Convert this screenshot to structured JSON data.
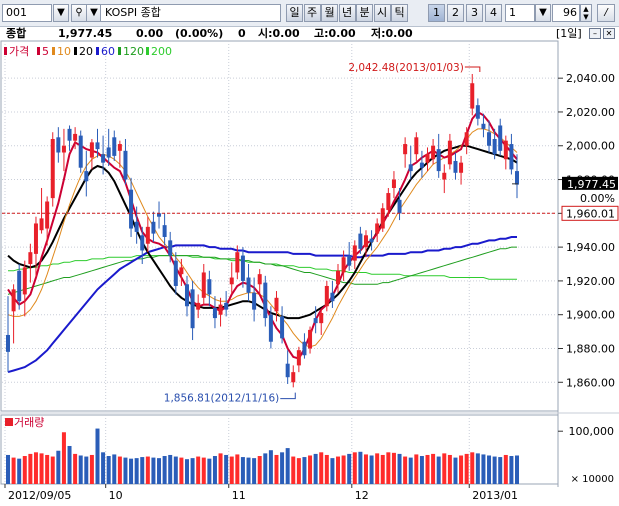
{
  "toolbar": {
    "code": "001",
    "name": "KOSPI 종합",
    "periods": [
      "일",
      "주",
      "월",
      "년",
      "분",
      "시",
      "틱"
    ],
    "numbers": [
      "1",
      "2",
      "3",
      "4"
    ],
    "interval": "1",
    "count": "96"
  },
  "info": {
    "label": "종합",
    "price": "1,977.45",
    "change": "0.00",
    "change_pct": "(0.00%)",
    "volume": "0",
    "open": "시:0.00",
    "high": "고:0.00",
    "low": "저:0.00",
    "period_badge": "[1일]"
  },
  "legend": {
    "price_label": "가격",
    "items": [
      {
        "label": "5",
        "color": "#cc0033"
      },
      {
        "label": "10",
        "color": "#e08a1e"
      },
      {
        "label": "20",
        "color": "#000000"
      },
      {
        "label": "60",
        "color": "#1a1acc"
      },
      {
        "label": "120",
        "color": "#1e9e1e"
      },
      {
        "label": "200",
        "color": "#2ecc2e"
      }
    ]
  },
  "volume_panel": {
    "label": "거래량",
    "y_ticks": [
      "100,000",
      "× 10000"
    ]
  },
  "chart_data": {
    "type": "candlestick",
    "y_ticks": [
      1860,
      1880,
      1900,
      1920,
      1940,
      1960,
      1980,
      2000,
      2020,
      2040
    ],
    "y_tick_labels": [
      "1,860.00",
      "1,880.00",
      "1,900.00",
      "1,920.00",
      "1,940.00",
      "1,960.00",
      "1,980.00",
      "2,000.00",
      "2,020.00",
      "2,040.00"
    ],
    "ylim": [
      1843,
      2062
    ],
    "x_tick_labels": [
      {
        "label": "2012/09/05",
        "index": 0
      },
      {
        "label": "10",
        "index": 18
      },
      {
        "label": "11",
        "index": 40
      },
      {
        "label": "12",
        "index": 62
      },
      {
        "label": "2013/01",
        "index": 83
      }
    ],
    "current_price": 1977.45,
    "current_price_label": "1,977.45",
    "current_change_label": "0.00%",
    "reference_price": 1960.01,
    "reference_price_label": "1,960.01",
    "annotations": [
      {
        "text": "2,042.48(2013/01/03)",
        "index": 84,
        "value": 2042.48
      },
      {
        "text": "1,856.81(2012/11/16)",
        "index": 51,
        "value": 1856.81
      }
    ],
    "candles": [
      [
        1888,
        1911,
        1866,
        1878
      ],
      [
        1902,
        1918,
        1883,
        1915
      ],
      [
        1926,
        1930,
        1903,
        1908
      ],
      [
        1912,
        1932,
        1899,
        1928
      ],
      [
        1930,
        1942,
        1919,
        1937
      ],
      [
        1936,
        1958,
        1922,
        1954
      ],
      [
        1950,
        1975,
        1948,
        1957
      ],
      [
        1951,
        1970,
        1941,
        1967
      ],
      [
        1969,
        2008,
        1964,
        2004
      ],
      [
        2005,
        2011,
        1990,
        1996
      ],
      [
        1996,
        2010,
        1985,
        2000
      ],
      [
        2010,
        2012,
        1997,
        2003
      ],
      [
        2003,
        2011,
        1998,
        2007
      ],
      [
        2006,
        2009,
        1984,
        1987
      ],
      [
        1985,
        1997,
        1970,
        1979
      ],
      [
        1993,
        2004,
        1986,
        2002
      ],
      [
        2002,
        2010,
        1993,
        1998
      ],
      [
        1995,
        2006,
        1983,
        1990
      ],
      [
        1999,
        2010,
        1988,
        1993
      ],
      [
        2005,
        2009,
        1991,
        1994
      ],
      [
        1997,
        2003,
        1987,
        2001
      ],
      [
        1997,
        2004,
        1977,
        1980
      ],
      [
        1974,
        1981,
        1946,
        1951
      ],
      [
        1955,
        1964,
        1942,
        1949
      ],
      [
        1947,
        1952,
        1930,
        1938
      ],
      [
        1942,
        1958,
        1937,
        1952
      ],
      [
        1955,
        1961,
        1943,
        1948
      ],
      [
        1960,
        1967,
        1951,
        1958
      ],
      [
        1953,
        1960,
        1941,
        1946
      ],
      [
        1944,
        1949,
        1931,
        1935
      ],
      [
        1932,
        1937,
        1912,
        1917
      ],
      [
        1924,
        1933,
        1917,
        1928
      ],
      [
        1918,
        1923,
        1899,
        1905
      ],
      [
        1915,
        1920,
        1885,
        1892
      ],
      [
        1903,
        1912,
        1898,
        1907
      ],
      [
        1910,
        1930,
        1906,
        1925
      ],
      [
        1921,
        1926,
        1905,
        1912
      ],
      [
        1904,
        1911,
        1892,
        1898
      ],
      [
        1900,
        1910,
        1893,
        1906
      ],
      [
        1907,
        1914,
        1899,
        1903
      ],
      [
        1918,
        1931,
        1912,
        1922
      ],
      [
        1925,
        1941,
        1921,
        1937
      ],
      [
        1935,
        1940,
        1916,
        1920
      ],
      [
        1922,
        1930,
        1908,
        1913
      ],
      [
        1913,
        1922,
        1896,
        1903
      ],
      [
        1918,
        1927,
        1912,
        1924
      ],
      [
        1919,
        1923,
        1893,
        1898
      ],
      [
        1900,
        1905,
        1880,
        1884
      ],
      [
        1902,
        1914,
        1896,
        1910
      ],
      [
        1899,
        1905,
        1883,
        1886
      ],
      [
        1871,
        1879,
        1859,
        1863
      ],
      [
        1860,
        1870,
        1857,
        1866
      ],
      [
        1870,
        1881,
        1866,
        1879
      ],
      [
        1884,
        1889,
        1874,
        1876
      ],
      [
        1880,
        1893,
        1877,
        1891
      ],
      [
        1898,
        1905,
        1889,
        1895
      ],
      [
        1895,
        1903,
        1888,
        1901
      ],
      [
        1905,
        1920,
        1902,
        1917
      ],
      [
        1913,
        1920,
        1904,
        1908
      ],
      [
        1918,
        1930,
        1913,
        1926
      ],
      [
        1925,
        1938,
        1920,
        1934
      ],
      [
        1935,
        1943,
        1926,
        1929
      ],
      [
        1932,
        1944,
        1927,
        1941
      ],
      [
        1948,
        1952,
        1936,
        1939
      ],
      [
        1940,
        1950,
        1934,
        1947
      ],
      [
        1945,
        1950,
        1938,
        1943
      ],
      [
        1948,
        1957,
        1943,
        1954
      ],
      [
        1951,
        1966,
        1949,
        1963
      ],
      [
        1962,
        1975,
        1958,
        1972
      ],
      [
        1975,
        1985,
        1969,
        1980
      ],
      [
        1968,
        1975,
        1956,
        1960
      ],
      [
        1995,
        2005,
        1987,
        2001
      ],
      [
        1989,
        2000,
        1980,
        1985
      ],
      [
        1995,
        2008,
        1991,
        2005
      ],
      [
        1990,
        1997,
        1981,
        1987
      ],
      [
        1990,
        1999,
        1985,
        1995
      ],
      [
        1992,
        2004,
        1989,
        2000
      ],
      [
        1998,
        2007,
        1981,
        1985
      ],
      [
        1980,
        1989,
        1972,
        1984
      ],
      [
        1989,
        2007,
        1986,
        2003
      ],
      [
        1991,
        1996,
        1980,
        1984
      ],
      [
        1984,
        1994,
        1977,
        1990
      ],
      [
        2000,
        2011,
        1995,
        2008
      ],
      [
        2022,
        2042.48,
        2018,
        2037
      ],
      [
        2024,
        2028,
        2012,
        2016
      ],
      [
        2013,
        2019,
        2005,
        2010
      ],
      [
        2008,
        2015,
        1996,
        2000
      ],
      [
        2004,
        2010,
        1992,
        1995
      ],
      [
        2012,
        2016,
        1994,
        1997
      ],
      [
        1992,
        2006,
        1986,
        2003
      ],
      [
        2001,
        2007,
        1983,
        1986
      ],
      [
        1985,
        1995,
        1969,
        1977
      ]
    ],
    "ma": {
      "5": [
        1915,
        1910,
        1906,
        1908,
        1912,
        1922,
        1934,
        1944,
        1955,
        1966,
        1980,
        1995,
        2002,
        2000,
        1998,
        1997,
        1996,
        1993,
        1990,
        1987,
        1985,
        1978,
        1968,
        1958,
        1949,
        1945,
        1943,
        1942,
        1940,
        1935,
        1928,
        1922,
        1916,
        1908,
        1905,
        1906,
        1906,
        1904,
        1902,
        1905,
        1912,
        1917,
        1919,
        1918,
        1916,
        1912,
        1905,
        1898,
        1892,
        1888,
        1880,
        1875,
        1874,
        1880,
        1888,
        1897,
        1903,
        1906,
        1911,
        1918,
        1926,
        1931,
        1935,
        1938,
        1942,
        1944,
        1948,
        1954,
        1960,
        1967,
        1973,
        1980,
        1988,
        1990,
        1993,
        1995,
        1997,
        1995,
        1993,
        1994,
        1996,
        1998,
        2007,
        2016,
        2020,
        2018,
        2014,
        2008,
        2004,
        2000,
        1996,
        1992
      ],
      "10": [
        1900,
        1899,
        1899,
        1900,
        1903,
        1908,
        1915,
        1924,
        1934,
        1944,
        1955,
        1965,
        1974,
        1982,
        1988,
        1992,
        1994,
        1995,
        1994,
        1992,
        1989,
        1985,
        1979,
        1972,
        1965,
        1958,
        1952,
        1946,
        1942,
        1938,
        1934,
        1930,
        1925,
        1920,
        1916,
        1913,
        1911,
        1909,
        1908,
        1908,
        1909,
        1911,
        1912,
        1913,
        1913,
        1912,
        1910,
        1906,
        1902,
        1898,
        1894,
        1889,
        1885,
        1882,
        1881,
        1882,
        1886,
        1892,
        1898,
        1905,
        1911,
        1917,
        1922,
        1927,
        1932,
        1936,
        1940,
        1945,
        1950,
        1956,
        1962,
        1967,
        1972,
        1977,
        1981,
        1985,
        1989,
        1991,
        1993,
        1995,
        1997,
        2000,
        2004,
        2008,
        2010,
        2010,
        2009,
        2007,
        2005,
        2002,
        1999,
        1996
      ],
      "20": [
        1935,
        1932,
        1930,
        1929,
        1928,
        1929,
        1932,
        1937,
        1943,
        1950,
        1957,
        1963,
        1969,
        1975,
        1981,
        1986,
        1988,
        1987,
        1984,
        1979,
        1972,
        1965,
        1958,
        1950,
        1943,
        1937,
        1932,
        1927,
        1922,
        1917,
        1913,
        1910,
        1908,
        1906,
        1905,
        1904,
        1904,
        1904,
        1904,
        1905,
        1906,
        1907,
        1908,
        1908,
        1907,
        1905,
        1903,
        1901,
        1900,
        1899,
        1898,
        1898,
        1898,
        1899,
        1900,
        1902,
        1904,
        1906,
        1909,
        1912,
        1916,
        1920,
        1925,
        1931,
        1937,
        1943,
        1949,
        1955,
        1960,
        1965,
        1970,
        1975,
        1980,
        1984,
        1987,
        1990,
        1993,
        1995,
        1997,
        1998,
        1999,
        2000,
        2000,
        1999,
        1998,
        1997,
        1996,
        1995,
        1994,
        1993,
        1992,
        1990
      ],
      "60": [
        1866,
        1867,
        1868,
        1869,
        1871,
        1873,
        1876,
        1879,
        1883,
        1887,
        1891,
        1895,
        1899,
        1903,
        1907,
        1911,
        1915,
        1918,
        1921,
        1924,
        1927,
        1929,
        1931,
        1933,
        1935,
        1937,
        1938,
        1939,
        1940,
        1940,
        1941,
        1941,
        1941,
        1941,
        1941,
        1941,
        1940,
        1940,
        1939,
        1939,
        1939,
        1938,
        1938,
        1937,
        1937,
        1937,
        1937,
        1937,
        1937,
        1937,
        1937,
        1936,
        1936,
        1936,
        1936,
        1935,
        1935,
        1935,
        1935,
        1935,
        1935,
        1935,
        1934,
        1934,
        1935,
        1935,
        1935,
        1935,
        1936,
        1936,
        1936,
        1936,
        1937,
        1937,
        1937,
        1938,
        1938,
        1938,
        1939,
        1939,
        1940,
        1940,
        1941,
        1942,
        1942,
        1943,
        1944,
        1944,
        1945,
        1945,
        1946,
        1946
      ],
      "120": [
        1912,
        1913,
        1914,
        1915,
        1916,
        1917,
        1918,
        1919,
        1920,
        1921,
        1922,
        1922,
        1923,
        1924,
        1925,
        1926,
        1927,
        1928,
        1929,
        1930,
        1931,
        1932,
        1932,
        1933,
        1933,
        1934,
        1934,
        1935,
        1935,
        1935,
        1935,
        1935,
        1935,
        1935,
        1935,
        1934,
        1934,
        1934,
        1933,
        1933,
        1933,
        1933,
        1932,
        1932,
        1931,
        1931,
        1930,
        1930,
        1929,
        1929,
        1928,
        1927,
        1926,
        1925,
        1925,
        1924,
        1923,
        1922,
        1921,
        1920,
        1919,
        1919,
        1918,
        1918,
        1918,
        1918,
        1918,
        1919,
        1919,
        1920,
        1921,
        1922,
        1923,
        1924,
        1925,
        1926,
        1927,
        1928,
        1929,
        1930,
        1931,
        1932,
        1933,
        1934,
        1935,
        1936,
        1937,
        1938,
        1939,
        1939,
        1940,
        1940
      ],
      "200": [
        1926,
        1926,
        1927,
        1927,
        1928,
        1928,
        1929,
        1929,
        1930,
        1930,
        1931,
        1931,
        1932,
        1932,
        1932,
        1933,
        1933,
        1933,
        1934,
        1934,
        1934,
        1934,
        1934,
        1935,
        1935,
        1935,
        1935,
        1935,
        1935,
        1935,
        1935,
        1935,
        1935,
        1934,
        1934,
        1934,
        1934,
        1933,
        1933,
        1933,
        1932,
        1932,
        1932,
        1931,
        1931,
        1931,
        1930,
        1930,
        1930,
        1929,
        1929,
        1929,
        1928,
        1928,
        1928,
        1927,
        1927,
        1927,
        1926,
        1926,
        1926,
        1925,
        1925,
        1925,
        1925,
        1924,
        1924,
        1924,
        1924,
        1924,
        1924,
        1923,
        1923,
        1923,
        1923,
        1923,
        1923,
        1923,
        1923,
        1922,
        1922,
        1922,
        1922,
        1922,
        1922,
        1922,
        1921,
        1921,
        1921,
        1921,
        1921,
        1921
      ]
    },
    "volume": {
      "y_ticks": [
        100000
      ],
      "ylim": [
        0,
        125000
      ],
      "values": [
        55000,
        50000,
        48000,
        53000,
        57000,
        60000,
        58000,
        55000,
        52000,
        63000,
        98000,
        72000,
        57000,
        54000,
        52000,
        55000,
        105000,
        60000,
        53000,
        56000,
        52000,
        50000,
        48000,
        49000,
        51000,
        52000,
        50000,
        49000,
        53000,
        55000,
        52000,
        50000,
        47000,
        49000,
        52000,
        50000,
        48000,
        53000,
        58000,
        55000,
        52000,
        56000,
        51000,
        50000,
        49000,
        53000,
        58000,
        64000,
        55000,
        60000,
        68000,
        52000,
        49000,
        51000,
        54000,
        57000,
        60000,
        55000,
        49000,
        52000,
        54000,
        57000,
        60000,
        61000,
        56000,
        54000,
        58000,
        55000,
        60000,
        59000,
        57000,
        52000,
        50000,
        56000,
        53000,
        55000,
        57000,
        52000,
        58000,
        55000,
        50000,
        54000,
        57000,
        60000,
        58000,
        56000,
        54000,
        52000,
        51000,
        55000,
        53000,
        54000
      ],
      "up_color": "#ff2b2b",
      "down_color": "#2a5db8"
    }
  }
}
